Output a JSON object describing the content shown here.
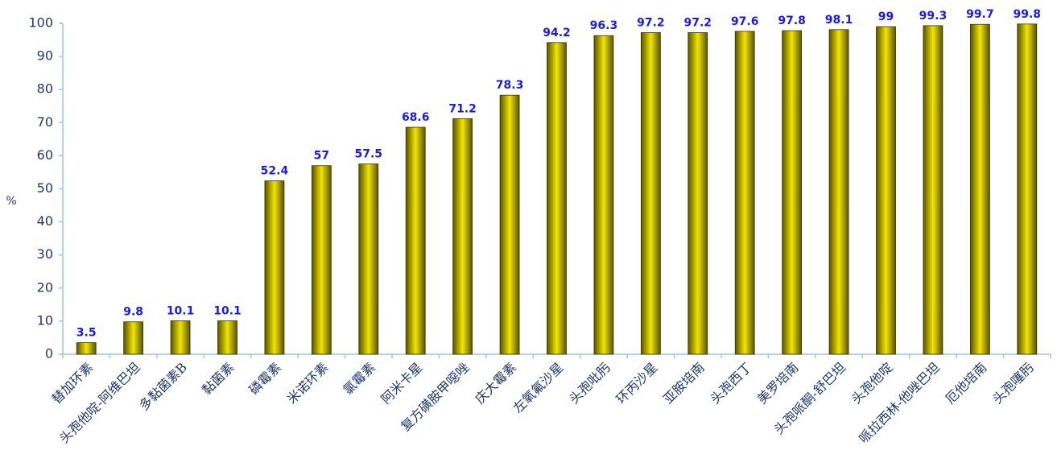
{
  "chart_data": {
    "type": "bar",
    "y_label": "%",
    "categories": [
      "替加环素",
      "头孢他啶-阿维巴坦",
      "多黏菌素B",
      "黏菌素",
      "磷霉素",
      "米诺环素",
      "氯霉素",
      "阿米卡星",
      "复方磺胺甲噁唑",
      "庆大霉素",
      "左氧氟沙星",
      "头孢吡肟",
      "环丙沙星",
      "亚胺培南",
      "头孢西丁",
      "美罗培南",
      "头孢哌酮-舒巴坦",
      "头孢他啶",
      "哌拉西林-他唑巴坦",
      "厄他培南",
      "头孢噻肟"
    ],
    "values": [
      3.5,
      9.8,
      10.1,
      10.1,
      52.4,
      57,
      57.5,
      68.6,
      71.2,
      78.3,
      94.2,
      96.3,
      97.2,
      97.2,
      97.6,
      97.8,
      98.1,
      99,
      99.3,
      99.7,
      99.8
    ],
    "color": "#f2e600",
    "label_color": "#1a1ae6",
    "ylim": [
      0,
      100
    ],
    "yticks": [
      0,
      10,
      20,
      30,
      40,
      50,
      60,
      70,
      80,
      90,
      100
    ],
    "grid": false
  }
}
